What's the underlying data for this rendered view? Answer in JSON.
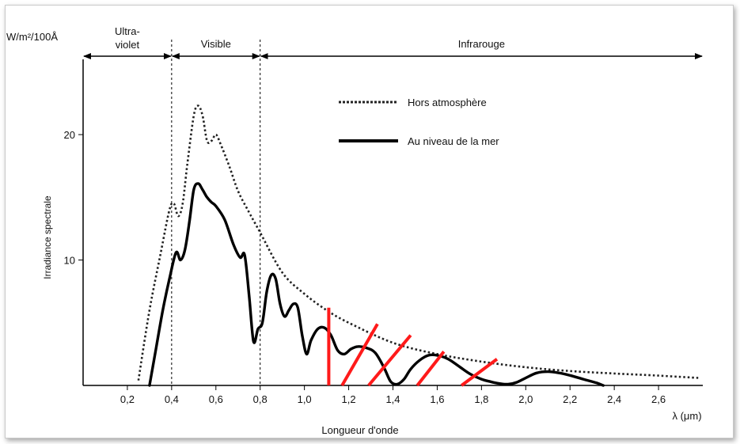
{
  "chart_data": {
    "type": "line",
    "ylabel_unit": "W/m²/100Å",
    "ylabel": "Irradiance spectrale",
    "xlabel": "Longueur d'onde",
    "xunit": "λ (μm)",
    "xlim": [
      0.0,
      2.8
    ],
    "ylim": [
      0,
      26
    ],
    "xticks": [
      0.2,
      0.4,
      0.6,
      0.8,
      1.0,
      1.2,
      1.4,
      1.6,
      1.8,
      2.0,
      2.2,
      2.4,
      2.6
    ],
    "xtick_labels": [
      "0,2",
      "0,4",
      "0,6",
      "0,8",
      "1,0",
      "1,2",
      "1,4",
      "1,6",
      "1,8",
      "2,0",
      "2,2",
      "2,4",
      "2,6"
    ],
    "yticks": [
      10,
      20
    ],
    "ytick_labels": [
      "10",
      "20"
    ],
    "regions": [
      {
        "label_lines": [
          "Ultra-",
          "violet"
        ],
        "from": 0.0,
        "to": 0.4
      },
      {
        "label_lines": [
          "Visible"
        ],
        "from": 0.4,
        "to": 0.8
      },
      {
        "label_lines": [
          "Infrarouge"
        ],
        "from": 0.8,
        "to": 2.8
      }
    ],
    "boundaries": [
      0.4,
      0.8
    ],
    "legend_position": "top-right",
    "series": [
      {
        "name": "Hors atmosphère",
        "style": "dotted",
        "color": "#222222",
        "x": [
          0.25,
          0.3,
          0.35,
          0.39,
          0.41,
          0.43,
          0.45,
          0.47,
          0.5,
          0.52,
          0.54,
          0.56,
          0.58,
          0.6,
          0.62,
          0.66,
          0.7,
          0.75,
          0.8,
          0.9,
          1.0,
          1.1,
          1.2,
          1.4,
          1.6,
          1.8,
          2.0,
          2.2,
          2.4,
          2.6,
          2.78
        ],
        "y": [
          0.4,
          6.0,
          10.5,
          14.0,
          14.5,
          13.5,
          14.5,
          17.5,
          21.5,
          22.3,
          21.5,
          19.5,
          19.5,
          20.0,
          19.3,
          17.5,
          15.5,
          13.8,
          12.2,
          9.0,
          7.3,
          6.0,
          5.0,
          3.4,
          2.5,
          1.9,
          1.45,
          1.15,
          0.95,
          0.78,
          0.6
        ]
      },
      {
        "name": "Au niveau de la mer",
        "style": "solid",
        "color": "#000000",
        "x": [
          0.3,
          0.33,
          0.36,
          0.39,
          0.42,
          0.44,
          0.46,
          0.48,
          0.5,
          0.52,
          0.54,
          0.56,
          0.58,
          0.6,
          0.64,
          0.68,
          0.71,
          0.73,
          0.75,
          0.77,
          0.79,
          0.81,
          0.83,
          0.85,
          0.87,
          0.89,
          0.91,
          0.93,
          0.95,
          0.97,
          0.99,
          1.01,
          1.03,
          1.06,
          1.09,
          1.12,
          1.15,
          1.18,
          1.21,
          1.24,
          1.28,
          1.32,
          1.36,
          1.39,
          1.42,
          1.45,
          1.48,
          1.52,
          1.56,
          1.6,
          1.65,
          1.7,
          1.75,
          1.8,
          1.84,
          1.88,
          1.92,
          1.96,
          2.0,
          2.05,
          2.1,
          2.15,
          2.2,
          2.26,
          2.32,
          2.35
        ],
        "y": [
          0.0,
          3.0,
          6.0,
          8.5,
          10.6,
          10.0,
          10.8,
          13.0,
          15.6,
          16.1,
          15.6,
          15.0,
          14.6,
          14.3,
          13.2,
          11.2,
          10.2,
          10.4,
          7.2,
          3.5,
          4.5,
          5.0,
          7.5,
          8.8,
          8.5,
          6.5,
          5.5,
          6.0,
          6.5,
          6.2,
          4.0,
          2.5,
          3.6,
          4.5,
          4.6,
          4.0,
          2.8,
          2.5,
          2.9,
          3.1,
          3.0,
          2.6,
          1.4,
          0.3,
          0.1,
          0.5,
          1.3,
          2.0,
          2.4,
          2.4,
          2.1,
          1.5,
          0.9,
          0.5,
          0.3,
          0.15,
          0.1,
          0.25,
          0.6,
          1.0,
          1.1,
          1.0,
          0.8,
          0.5,
          0.2,
          0.0
        ]
      }
    ],
    "annotations": [
      {
        "type": "stroke",
        "color": "#ff1a1a",
        "from": [
          1.11,
          0.0
        ],
        "to": [
          1.11,
          6.2
        ]
      },
      {
        "type": "stroke",
        "color": "#ff1a1a",
        "from": [
          1.17,
          0.0
        ],
        "to": [
          1.33,
          4.9
        ]
      },
      {
        "type": "stroke",
        "color": "#ff1a1a",
        "from": [
          1.29,
          0.0
        ],
        "to": [
          1.48,
          4.0
        ]
      },
      {
        "type": "stroke",
        "color": "#ff1a1a",
        "from": [
          1.51,
          0.0
        ],
        "to": [
          1.63,
          2.7
        ]
      },
      {
        "type": "stroke",
        "color": "#ff1a1a",
        "from": [
          1.71,
          0.0
        ],
        "to": [
          1.87,
          2.1
        ]
      }
    ]
  }
}
